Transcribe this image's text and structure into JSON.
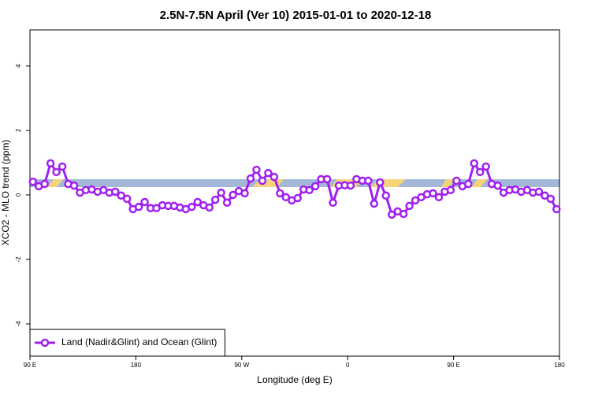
{
  "chart_data": {
    "type": "line",
    "title": "2.5N-7.5N April (Ver 10)   2015-01-01 to 2020-12-18",
    "xlabel": "Longitude (deg E)",
    "ylabel": "XCO2 - MLO trend (ppm)",
    "x": [
      92.5,
      97.5,
      102.5,
      107.5,
      112.5,
      117.5,
      122.5,
      127.5,
      132.5,
      137.5,
      142.5,
      147.5,
      152.5,
      157.5,
      162.5,
      167.5,
      172.5,
      177.5,
      182.5,
      187.5,
      192.5,
      197.5,
      202.5,
      207.5,
      212.5,
      217.5,
      222.5,
      227.5,
      232.5,
      237.5,
      242.5,
      247.5,
      252.5,
      257.5,
      262.5,
      267.5,
      272.5,
      277.5,
      282.5,
      287.5,
      292.5,
      297.5,
      302.5,
      307.5,
      312.5,
      317.5,
      322.5,
      327.5,
      332.5,
      337.5,
      342.5,
      347.5,
      352.5,
      357.5,
      362.5,
      367.5,
      372.5,
      377.5,
      382.5,
      387.5,
      392.5,
      397.5,
      402.5,
      407.5,
      412.5,
      417.5,
      422.5,
      427.5,
      432.5,
      437.5,
      442.5,
      447.5,
      452.5,
      457.5,
      462.5,
      467.5,
      472.5,
      477.5,
      482.5,
      487.5,
      492.5,
      497.5,
      502.5,
      507.5,
      512.5,
      517.5,
      522.5,
      527.5,
      532.5,
      537.5
    ],
    "series": [
      {
        "name": "Land (Nadir&Glint) and Ocean (Glint)",
        "color": "#a020f0",
        "values": [
          0.41,
          0.27,
          0.34,
          0.98,
          0.71,
          0.88,
          0.34,
          0.29,
          0.07,
          0.15,
          0.17,
          0.1,
          0.15,
          0.07,
          0.1,
          -0.02,
          -0.12,
          -0.44,
          -0.37,
          -0.22,
          -0.41,
          -0.41,
          -0.32,
          -0.34,
          -0.34,
          -0.39,
          -0.44,
          -0.37,
          -0.22,
          -0.32,
          -0.39,
          -0.15,
          0.07,
          -0.24,
          0,
          0.12,
          0.05,
          0.51,
          0.78,
          0.44,
          0.68,
          0.56,
          0.05,
          -0.07,
          -0.17,
          -0.1,
          0.17,
          0.15,
          0.27,
          0.49,
          0.49,
          -0.24,
          0.29,
          0.3,
          0.29,
          0.49,
          0.44,
          0.44,
          -0.27,
          0.39,
          -0.02,
          -0.61,
          -0.51,
          -0.59,
          -0.34,
          -0.17,
          -0.07,
          0.02,
          0.05,
          -0.07,
          0.1,
          0.15,
          0.44,
          0.27,
          0.34,
          0.98,
          0.71,
          0.88,
          0.34,
          0.29,
          0.07,
          0.15,
          0.17,
          0.1,
          0.15,
          0.07,
          0.1,
          -0.02,
          -0.12,
          -0.44
        ]
      }
    ],
    "xlim": [
      90,
      540
    ],
    "xticks": [
      {
        "value": 90,
        "label": "90 E"
      },
      180,
      {
        "value": 270,
        "label": "90 W"
      },
      {
        "value": 360,
        "label": "0"
      },
      {
        "value": 450,
        "label": "90 E"
      },
      {
        "value": 540,
        "label": "180"
      }
    ],
    "ylim": [
      -5,
      5.12
    ],
    "yticks": [
      -4,
      -2,
      0,
      2,
      4
    ],
    "legend": "bottomleft"
  }
}
